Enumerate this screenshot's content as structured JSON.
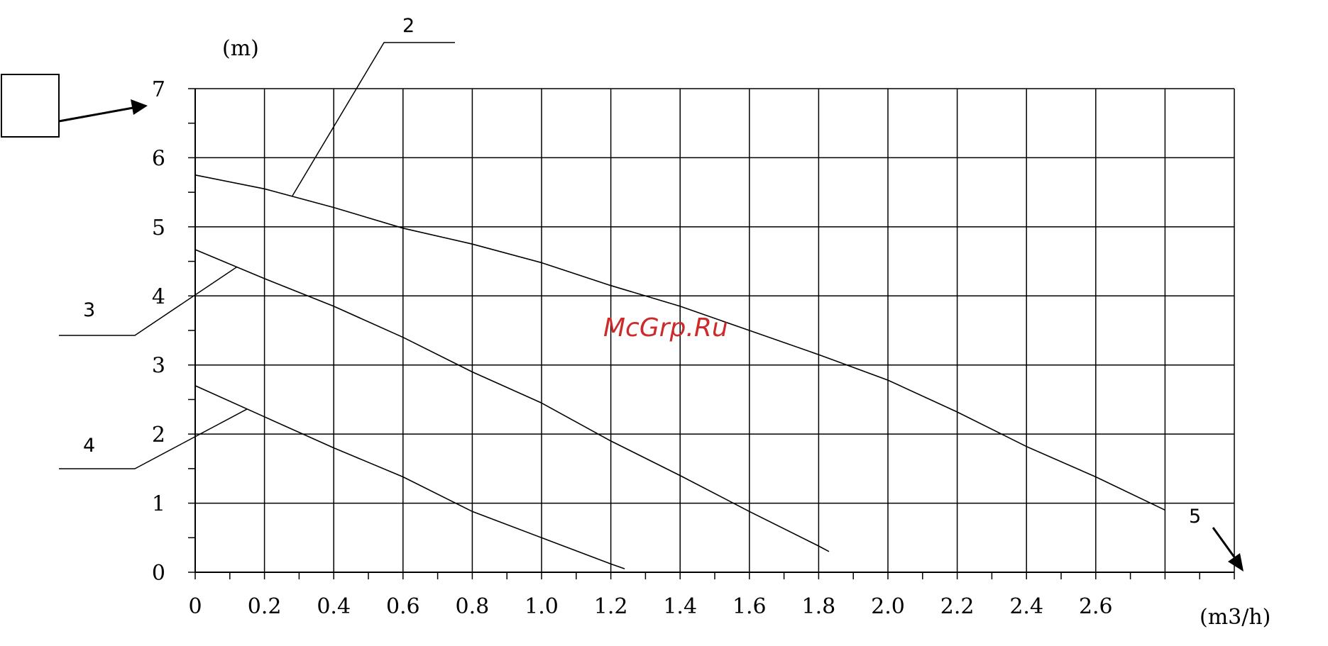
{
  "chart_data": {
    "type": "line",
    "ylabel": "(m)",
    "xlabel": "(m3/h)",
    "xlim": [
      0,
      3.0
    ],
    "ylim": [
      0,
      7
    ],
    "grid": true,
    "x_ticks": [
      0,
      0.2,
      0.4,
      0.6,
      0.8,
      1.0,
      1.2,
      1.4,
      1.6,
      1.8,
      2.0,
      2.2,
      2.4,
      2.6
    ],
    "x_tick_labels": [
      "0",
      "0.2",
      "0.4",
      "0.6",
      "0.8",
      "1.0",
      "1.2",
      "1.4",
      "1.6",
      "1.8",
      "2.0",
      "2.2",
      "2.4",
      "2.6"
    ],
    "y_ticks": [
      0,
      1,
      2,
      3,
      4,
      5,
      6,
      7
    ],
    "y_tick_labels": [
      "0",
      "1",
      "2",
      "3",
      "4",
      "5",
      "6",
      "7"
    ],
    "series": [
      {
        "name": "2",
        "x": [
          0,
          0.2,
          0.4,
          0.6,
          0.8,
          1.0,
          1.2,
          1.4,
          1.6,
          1.8,
          2.0,
          2.2,
          2.4,
          2.6,
          2.8
        ],
        "y": [
          5.75,
          5.55,
          5.28,
          4.98,
          4.75,
          4.48,
          4.15,
          3.85,
          3.5,
          3.15,
          2.78,
          2.32,
          1.82,
          1.38,
          0.9
        ]
      },
      {
        "name": "3",
        "x": [
          0,
          0.2,
          0.4,
          0.6,
          0.8,
          1.0,
          1.2,
          1.4,
          1.6,
          1.8,
          1.83
        ],
        "y": [
          4.67,
          4.25,
          3.85,
          3.4,
          2.9,
          2.45,
          1.9,
          1.4,
          0.88,
          0.38,
          0.3
        ]
      },
      {
        "name": "4",
        "x": [
          0,
          0.2,
          0.4,
          0.6,
          0.8,
          1.0,
          1.2,
          1.24
        ],
        "y": [
          2.7,
          2.25,
          1.8,
          1.38,
          0.88,
          0.5,
          0.12,
          0.05
        ]
      }
    ],
    "callouts": [
      "2",
      "3",
      "4",
      "5"
    ]
  },
  "watermark": "McGrp.Ru"
}
